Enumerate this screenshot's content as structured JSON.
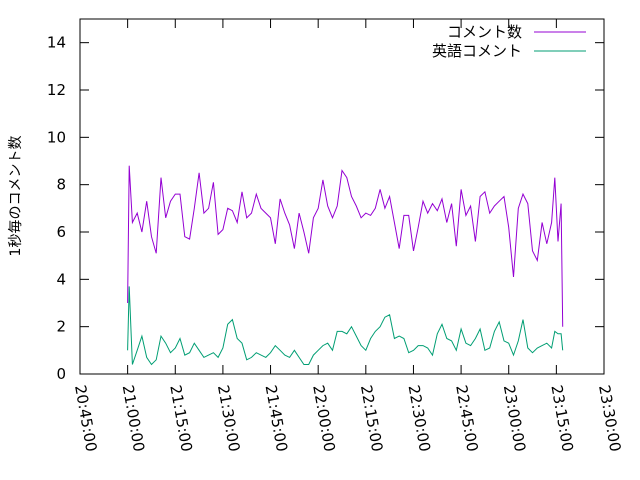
{
  "chart_data": {
    "type": "line",
    "title": "",
    "ylabel": "1秒毎のコメント数",
    "xlabel": "",
    "ylim": [
      0,
      15
    ],
    "xlim": [
      "20:45:00",
      "23:30:00"
    ],
    "yticks": [
      0,
      2,
      4,
      6,
      8,
      10,
      12,
      14
    ],
    "xticks": [
      "20:45:00",
      "21:00:00",
      "21:15:00",
      "21:30:00",
      "21:45:00",
      "22:00:00",
      "22:15:00",
      "22:30:00",
      "22:45:00",
      "23:00:00",
      "23:15:00",
      "23:30:00"
    ],
    "grid": false,
    "legend_position": "top-right",
    "x": [
      "21:00:00",
      "21:00:30",
      "21:01:30",
      "21:03:00",
      "21:04:30",
      "21:06:00",
      "21:07:30",
      "21:09:00",
      "21:10:30",
      "21:12:00",
      "21:13:30",
      "21:15:00",
      "21:16:30",
      "21:18:00",
      "21:19:30",
      "21:21:00",
      "21:22:30",
      "21:24:00",
      "21:25:30",
      "21:27:00",
      "21:28:30",
      "21:30:00",
      "21:31:30",
      "21:33:00",
      "21:34:30",
      "21:36:00",
      "21:37:30",
      "21:39:00",
      "21:40:30",
      "21:42:00",
      "21:43:30",
      "21:45:00",
      "21:46:30",
      "21:48:00",
      "21:49:30",
      "21:51:00",
      "21:52:30",
      "21:54:00",
      "21:55:30",
      "21:57:00",
      "21:58:30",
      "22:00:00",
      "22:01:30",
      "22:03:00",
      "22:04:30",
      "22:06:00",
      "22:07:30",
      "22:09:00",
      "22:10:30",
      "22:12:00",
      "22:13:30",
      "22:15:00",
      "22:16:30",
      "22:18:00",
      "22:19:30",
      "22:21:00",
      "22:22:30",
      "22:24:00",
      "22:25:30",
      "22:27:00",
      "22:28:30",
      "22:30:00",
      "22:31:30",
      "22:33:00",
      "22:34:30",
      "22:36:00",
      "22:37:30",
      "22:39:00",
      "22:40:30",
      "22:42:00",
      "22:43:30",
      "22:45:00",
      "22:46:30",
      "22:48:00",
      "22:49:30",
      "22:51:00",
      "22:52:30",
      "22:54:00",
      "22:55:30",
      "22:57:00",
      "22:58:30",
      "23:00:00",
      "23:01:30",
      "23:03:00",
      "23:04:30",
      "23:06:00",
      "23:07:30",
      "23:09:00",
      "23:10:30",
      "23:12:00",
      "23:13:30",
      "23:14:30",
      "23:15:30",
      "23:16:30",
      "23:17:00"
    ],
    "series": [
      {
        "name": "コメント数",
        "color": "#9400d3",
        "values": [
          3.0,
          8.8,
          6.4,
          6.8,
          6.0,
          7.3,
          5.8,
          5.1,
          8.3,
          6.6,
          7.3,
          7.6,
          7.6,
          5.8,
          5.7,
          7.0,
          8.5,
          6.8,
          7.0,
          8.1,
          5.9,
          6.1,
          7.0,
          6.9,
          6.4,
          7.7,
          6.6,
          6.8,
          7.6,
          7.0,
          6.8,
          6.6,
          5.5,
          7.4,
          6.8,
          6.3,
          5.3,
          6.8,
          6.0,
          5.1,
          6.6,
          7.0,
          8.2,
          7.1,
          6.6,
          7.1,
          8.6,
          8.3,
          7.5,
          7.1,
          6.6,
          6.8,
          6.7,
          7.0,
          7.8,
          7.0,
          7.5,
          6.4,
          5.3,
          6.7,
          6.7,
          5.2,
          6.2,
          7.3,
          6.8,
          7.2,
          6.9,
          7.4,
          6.4,
          7.2,
          5.4,
          7.8,
          6.7,
          7.1,
          5.6,
          7.5,
          7.7,
          6.8,
          7.1,
          7.3,
          7.5,
          6.2,
          4.1,
          7.0,
          7.6,
          7.2,
          5.2,
          4.8,
          6.4,
          5.5,
          6.4,
          8.3,
          5.6,
          7.2,
          2.0
        ]
      },
      {
        "name": "英語コメント",
        "color": "#009e73",
        "values": [
          1.0,
          3.7,
          0.4,
          1.0,
          1.6,
          0.7,
          0.4,
          0.6,
          1.6,
          1.3,
          0.9,
          1.1,
          1.5,
          0.8,
          0.9,
          1.3,
          1.0,
          0.7,
          0.8,
          0.9,
          0.7,
          1.1,
          2.1,
          2.3,
          1.5,
          1.3,
          0.6,
          0.7,
          0.9,
          0.8,
          0.7,
          0.9,
          1.2,
          1.0,
          0.8,
          0.7,
          1.0,
          0.7,
          0.4,
          0.4,
          0.8,
          1.0,
          1.2,
          1.3,
          1.0,
          1.8,
          1.8,
          1.7,
          2.0,
          1.6,
          1.2,
          1.0,
          1.5,
          1.8,
          2.0,
          2.4,
          2.5,
          1.5,
          1.6,
          1.5,
          0.9,
          1.0,
          1.2,
          1.2,
          1.1,
          0.8,
          1.7,
          2.1,
          1.5,
          1.4,
          1.0,
          1.9,
          1.3,
          1.2,
          1.5,
          1.9,
          1.0,
          1.1,
          1.8,
          2.2,
          1.4,
          1.3,
          0.8,
          1.4,
          2.3,
          1.1,
          0.9,
          1.1,
          1.2,
          1.3,
          1.1,
          1.8,
          1.7,
          1.7,
          1.0
        ]
      }
    ]
  }
}
